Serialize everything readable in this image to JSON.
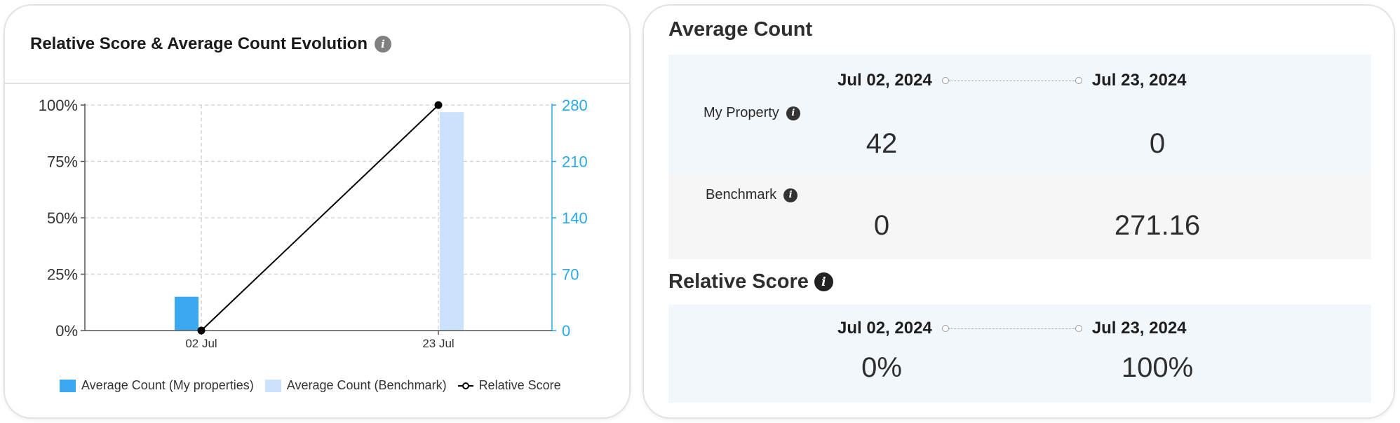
{
  "chart_panel": {
    "title": "Relative Score & Average Count Evolution",
    "info_icon": "info-icon",
    "legend": [
      {
        "label": "Average Count (My properties)",
        "color": "#3aa9f2"
      },
      {
        "label": "Average Count (Benchmark)",
        "color": "#cce1fc"
      },
      {
        "label": "Relative Score",
        "color": "#000000"
      }
    ]
  },
  "chart_data": {
    "type": "bar",
    "categories": [
      "02 Jul",
      "23 Jul"
    ],
    "series": [
      {
        "name": "Average Count (My properties)",
        "type": "bar",
        "axis": "right",
        "color": "#3aa9f2",
        "values": [
          42,
          0
        ]
      },
      {
        "name": "Average Count (Benchmark)",
        "type": "bar",
        "axis": "right",
        "color": "#cce1fc",
        "values": [
          0,
          271.16
        ]
      },
      {
        "name": "Relative Score",
        "type": "line",
        "axis": "left",
        "color": "#000000",
        "values": [
          0,
          100
        ]
      }
    ],
    "y_left": {
      "ticks": [
        "0%",
        "25%",
        "50%",
        "75%",
        "100%"
      ],
      "values": [
        0,
        25,
        50,
        75,
        100
      ],
      "ylim": [
        0,
        100
      ]
    },
    "y_right": {
      "ticks": [
        "0",
        "70",
        "140",
        "210",
        "280"
      ],
      "values": [
        0,
        70,
        140,
        210,
        280
      ],
      "ylim": [
        0,
        280
      ],
      "color": "#29a9e6"
    },
    "grid": true,
    "legend_position": "bottom"
  },
  "summary": {
    "average_count": {
      "title": "Average Count",
      "date_from": "Jul 02, 2024",
      "date_to": "Jul 23, 2024",
      "rows": [
        {
          "label": "My Property",
          "from_value": "42",
          "to_value": "0"
        },
        {
          "label": "Benchmark",
          "from_value": "0",
          "to_value": "271.16"
        }
      ]
    },
    "relative_score": {
      "title": "Relative Score",
      "date_from": "Jul 02, 2024",
      "date_to": "Jul 23, 2024",
      "from_value": "0%",
      "to_value": "100%"
    }
  }
}
